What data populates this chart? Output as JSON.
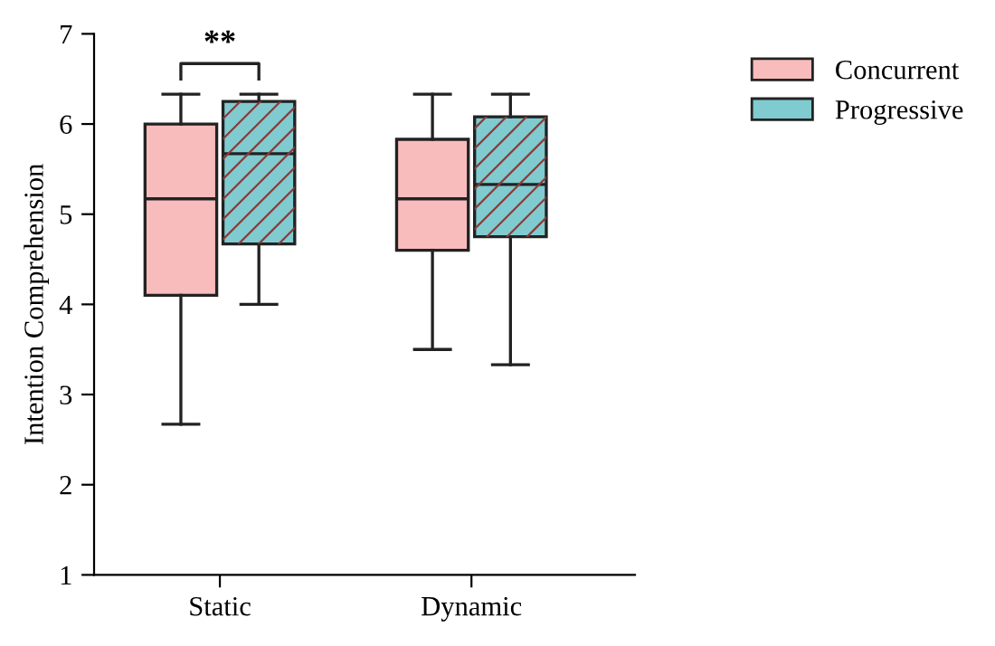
{
  "chart_data": {
    "type": "box",
    "ylabel": "Intention Comprehension",
    "categories": [
      "Static",
      "Dynamic"
    ],
    "ylim": [
      1,
      7
    ],
    "yticks": [
      1,
      2,
      3,
      4,
      5,
      6,
      7
    ],
    "grid": false,
    "legend": "top right",
    "annotations": [
      "**"
    ],
    "series": [
      {
        "name": "Concurrent",
        "color": "#f8bcbc",
        "boxes": [
          {
            "low": 2.67,
            "q1": 4.1,
            "median": 5.17,
            "q3": 6.0,
            "high": 6.33
          },
          {
            "low": 3.5,
            "q1": 4.6,
            "median": 5.17,
            "q3": 5.83,
            "high": 6.33
          }
        ]
      },
      {
        "name": "Progressive",
        "color": "#7fcbcf",
        "boxes": [
          {
            "low": 4.0,
            "q1": 4.67,
            "median": 5.67,
            "q3": 6.25,
            "high": 6.33
          },
          {
            "low": 3.33,
            "q1": 4.75,
            "median": 5.33,
            "q3": 6.08,
            "high": 6.33
          }
        ]
      }
    ]
  }
}
